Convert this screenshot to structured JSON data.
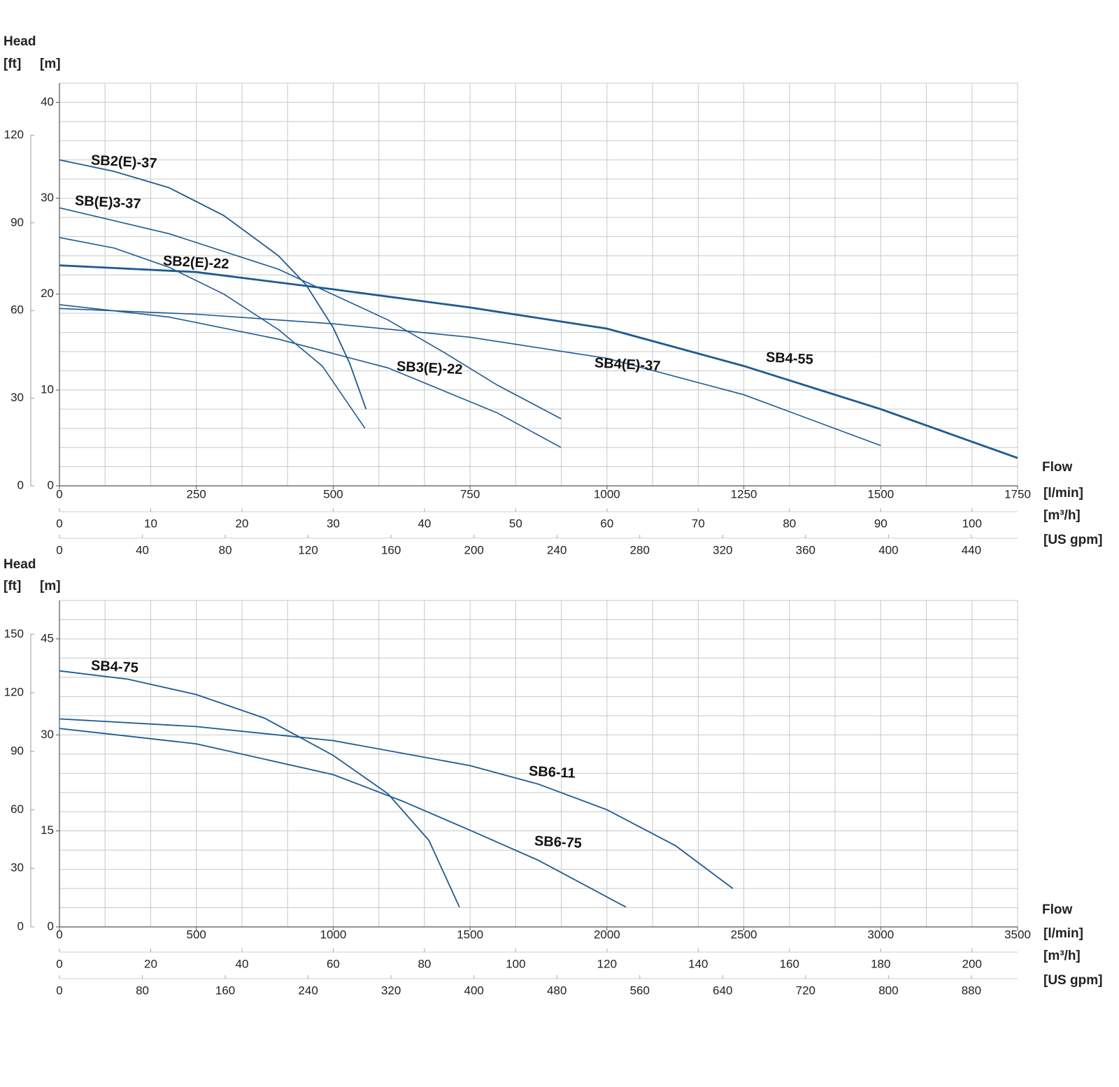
{
  "chart_data": [
    {
      "type": "line",
      "y_title": "Head",
      "y2_label": "[ft]",
      "y_label": "[m]",
      "x_title": "Flow",
      "x_label": "[l/min]",
      "x2_label": "[m³/h]",
      "x3_label": "[US gpm]",
      "xlim": [
        0,
        1750
      ],
      "xticks": [
        0,
        250,
        500,
        750,
        1000,
        1250,
        1500,
        1750
      ],
      "x2lim": [
        0,
        105
      ],
      "x2ticks": [
        0,
        10,
        20,
        30,
        40,
        50,
        60,
        70,
        80,
        90,
        100
      ],
      "x3lim": [
        0,
        462.3
      ],
      "x3ticks": [
        0,
        40,
        80,
        120,
        160,
        200,
        240,
        280,
        320,
        360,
        400,
        440
      ],
      "ylim": [
        0,
        42
      ],
      "yticks": [
        0,
        10,
        20,
        30,
        40
      ],
      "y2lim": [
        0,
        137.8
      ],
      "y2ticks": [
        0,
        30,
        60,
        90,
        120
      ],
      "grid": {
        "x2_step": 5,
        "y_step": 2
      },
      "series": [
        {
          "name": "SB2(E)-37",
          "color": "#1d5a92",
          "width": 1.8,
          "x": [
            0,
            100,
            200,
            300,
            400,
            450,
            500,
            530,
            560
          ],
          "values": [
            34,
            32.8,
            31.1,
            28.2,
            24.0,
            21.0,
            16.5,
            12.8,
            8.0
          ]
        },
        {
          "name": "SB(E)3-37",
          "color": "#1d5a92",
          "width": 1.6,
          "x": [
            0,
            200,
            400,
            600,
            700,
            800,
            916
          ],
          "values": [
            29,
            26.3,
            22.6,
            17.3,
            14.0,
            10.5,
            7.0
          ]
        },
        {
          "name": "SB2(E)-22",
          "color": "#1d5a92",
          "width": 1.6,
          "x": [
            0,
            100,
            200,
            300,
            400,
            480,
            558
          ],
          "values": [
            25.9,
            24.8,
            22.8,
            20.0,
            16.3,
            12.5,
            6.0
          ]
        },
        {
          "name": "SB4-55",
          "color": "#1d5a92",
          "width": 2.8,
          "x": [
            0,
            250,
            500,
            750,
            1000,
            1250,
            1500,
            1750
          ],
          "values": [
            23,
            22.3,
            20.5,
            18.6,
            16.4,
            12.5,
            8.0,
            2.9
          ]
        },
        {
          "name": "SB3(E)-22",
          "color": "#1d5a92",
          "width": 1.6,
          "x": [
            0,
            200,
            400,
            600,
            800,
            916
          ],
          "values": [
            18.9,
            17.6,
            15.3,
            12.3,
            7.6,
            4.0
          ]
        },
        {
          "name": "SB4(E)-37",
          "color": "#1d5a92",
          "width": 1.6,
          "x": [
            0,
            250,
            500,
            750,
            1000,
            1250,
            1500
          ],
          "values": [
            18.5,
            17.9,
            16.9,
            15.5,
            13.3,
            9.5,
            4.2
          ]
        }
      ]
    },
    {
      "type": "line",
      "y_title": "Head",
      "y2_label": "[ft]",
      "y_label": "[m]",
      "x_title": "Flow",
      "x_label": "[l/min]",
      "x2_label": "[m³/h]",
      "x3_label": "[US gpm]",
      "xlim": [
        0,
        3500
      ],
      "xticks": [
        0,
        500,
        1000,
        1500,
        2000,
        2500,
        3000,
        3500
      ],
      "x2lim": [
        0,
        210
      ],
      "x2ticks": [
        0,
        20,
        40,
        60,
        80,
        100,
        120,
        140,
        160,
        180,
        200
      ],
      "x3lim": [
        0,
        924.6
      ],
      "x3ticks": [
        0,
        80,
        160,
        240,
        320,
        400,
        480,
        560,
        640,
        720,
        800,
        880
      ],
      "ylim": [
        0,
        51
      ],
      "yticks": [
        0,
        15,
        30,
        45
      ],
      "y2lim": [
        0,
        167.3
      ],
      "y2ticks": [
        0,
        30,
        60,
        90,
        120,
        150
      ],
      "grid": {
        "x2_step": 10,
        "y_step": 3
      },
      "series": [
        {
          "name": "SB4-75",
          "color": "#1d5a92",
          "width": 1.8,
          "x": [
            0,
            250,
            500,
            750,
            1000,
            1200,
            1350,
            1461
          ],
          "values": [
            40,
            38.7,
            36.3,
            32.6,
            26.8,
            20.8,
            13.5,
            3.1
          ]
        },
        {
          "name": "SB6-11",
          "color": "#1d5a92",
          "width": 1.8,
          "x": [
            0,
            500,
            1000,
            1500,
            1750,
            2000,
            2250,
            2460
          ],
          "values": [
            32.5,
            31.3,
            29.1,
            25.2,
            22.3,
            18.3,
            12.7,
            6.0
          ]
        },
        {
          "name": "SB6-75",
          "color": "#1d5a92",
          "width": 1.8,
          "x": [
            0,
            500,
            1000,
            1250,
            1500,
            1750,
            2069
          ],
          "values": [
            31,
            28.6,
            23.8,
            19.7,
            15.1,
            10.4,
            3.1
          ]
        }
      ]
    }
  ]
}
